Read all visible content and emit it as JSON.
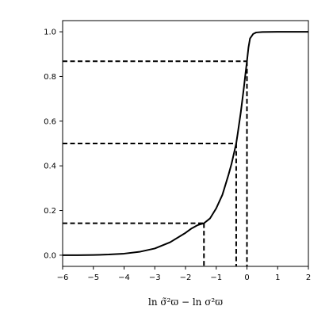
{
  "chart_data": {
    "type": "line",
    "xlabel": "ln σ̃²ϖ − ln σ²ϖ",
    "xlim": [
      -6,
      2
    ],
    "ylim": [
      -0.05,
      1.05
    ],
    "xticks": [
      -6,
      -5,
      -4,
      -3,
      -2,
      -1,
      0,
      1,
      2
    ],
    "xtick_labels": [
      "−6",
      "−5",
      "−4",
      "−3",
      "−2",
      "−1",
      "0",
      "1",
      "2"
    ],
    "yticks": [
      0.0,
      0.2,
      0.4,
      0.6,
      0.8,
      1.0
    ],
    "ytick_labels": [
      "0.0",
      "0.2",
      "0.4",
      "0.6",
      "0.8",
      "1.0"
    ],
    "grid": false,
    "curve": {
      "x": [
        -6.0,
        -5.5,
        -5.0,
        -4.5,
        -4.0,
        -3.5,
        -3.0,
        -2.5,
        -2.0,
        -1.8,
        -1.6,
        -1.4,
        -1.2,
        -1.0,
        -0.8,
        -0.6,
        -0.5,
        -0.4,
        -0.35,
        -0.3,
        -0.2,
        -0.1,
        -0.05,
        0.0,
        0.05,
        0.1,
        0.2,
        0.3,
        0.5,
        1.0,
        1.5,
        2.0
      ],
      "y": [
        0.0,
        0.0,
        0.001,
        0.003,
        0.007,
        0.015,
        0.03,
        0.058,
        0.1,
        0.12,
        0.135,
        0.143,
        0.165,
        0.21,
        0.27,
        0.36,
        0.41,
        0.47,
        0.5,
        0.545,
        0.64,
        0.75,
        0.81,
        0.868,
        0.93,
        0.97,
        0.99,
        0.997,
        0.999,
        1.0,
        1.0,
        1.0
      ]
    },
    "reference_lines": [
      {
        "x": -1.4,
        "y": 0.143
      },
      {
        "x": -0.35,
        "y": 0.5
      },
      {
        "x": 0.0,
        "y": 0.868
      }
    ]
  }
}
